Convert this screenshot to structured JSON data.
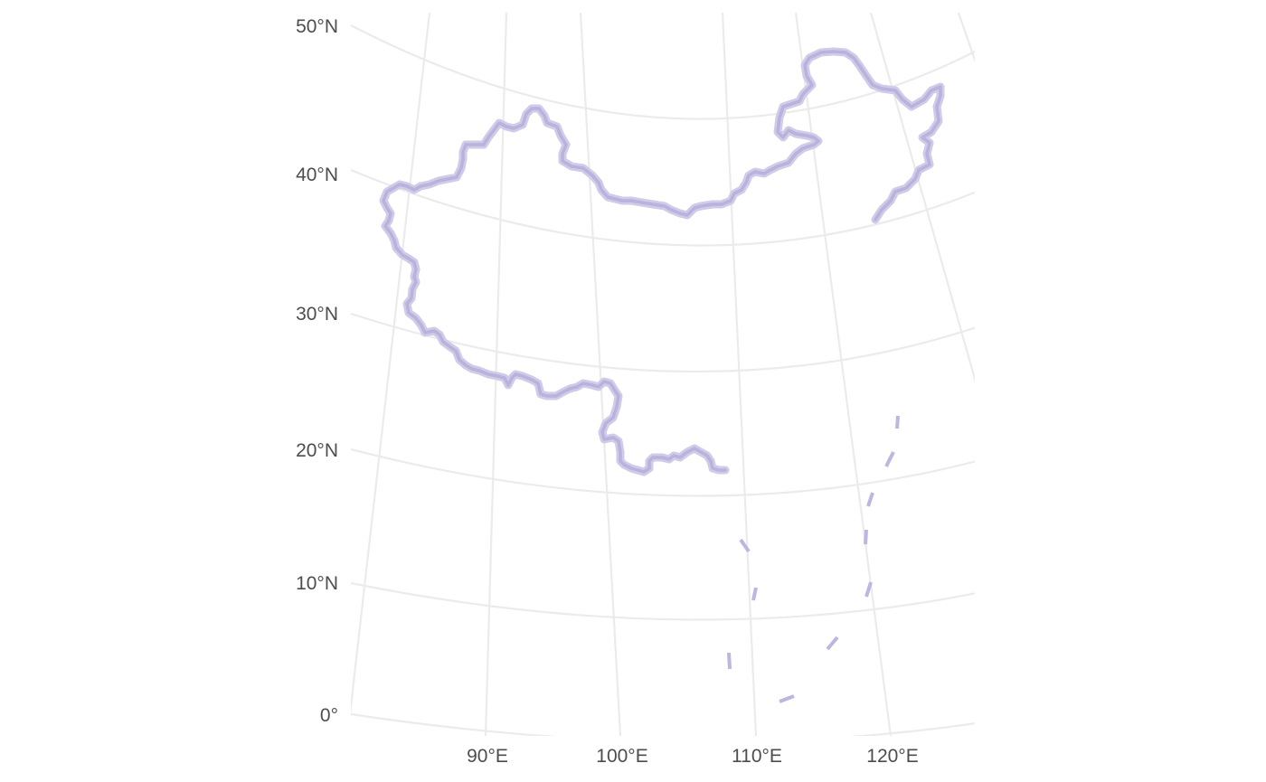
{
  "map": {
    "projection": "conic",
    "graticule_color": "#ebebeb",
    "latitude_labels": [
      "50°N",
      "40°N",
      "30°N",
      "20°N",
      "10°N",
      "0°"
    ],
    "longitude_labels": [
      "90°E",
      "100°E",
      "110°E",
      "120°E"
    ],
    "latitudes": [
      50,
      40,
      30,
      20,
      10,
      0
    ],
    "longitudes": [
      90,
      100,
      110,
      120
    ],
    "border": {
      "name": "china-border",
      "color": "#b8b2dc"
    },
    "nine_dash_line": {
      "name": "nine-dash-line",
      "color": "#bdb6de",
      "style": "dashed"
    }
  }
}
